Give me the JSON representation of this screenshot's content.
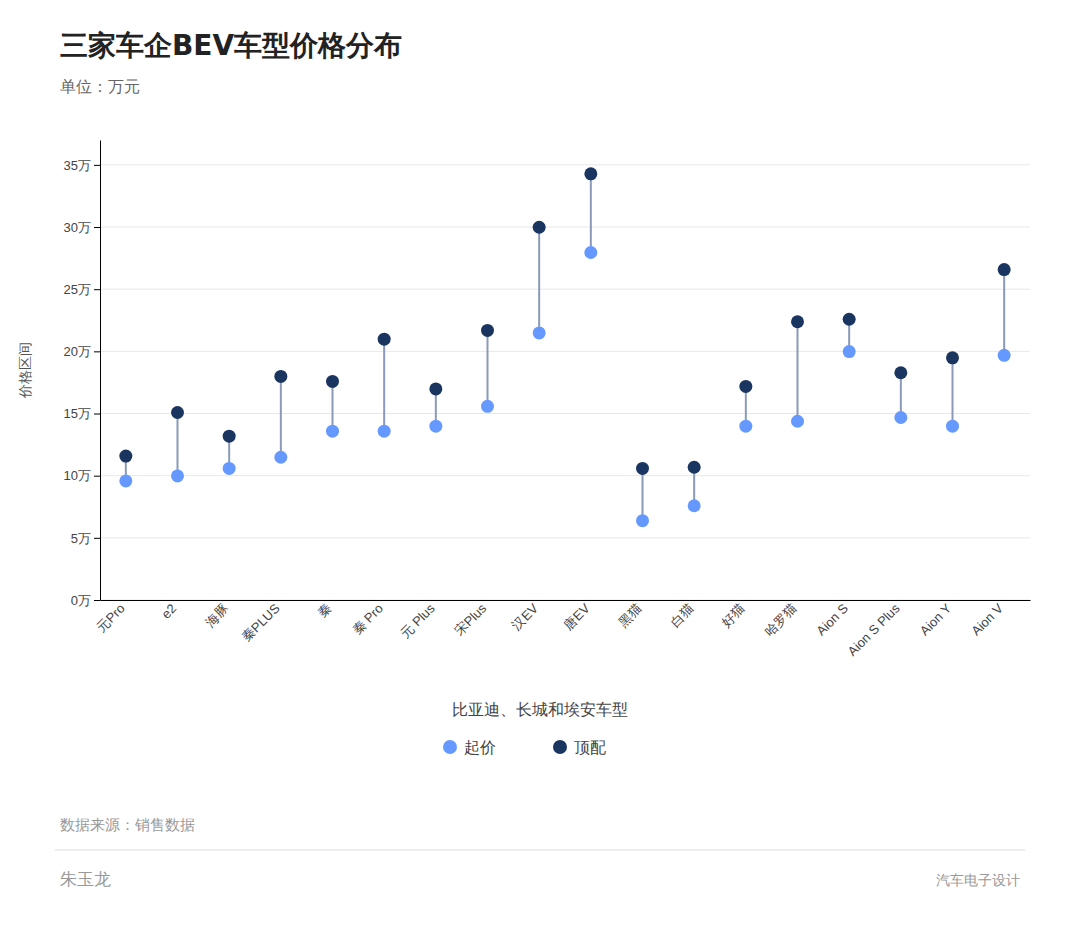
{
  "chart_data": {
    "type": "dumbbell",
    "title": "三家车企BEV车型价格分布",
    "subtitle": "单位：万元",
    "y_label": "价格区间",
    "legend_title": "比亚迪、长城和埃安车型",
    "source": "数据来源：销售数据",
    "author": "朱玉龙",
    "logo_text": "汽车电子设计",
    "categories": [
      "元Pro",
      "e2",
      "海豚",
      "秦PLUS",
      "秦",
      "秦 Pro",
      "元 Plus",
      "宋Plus",
      "汉EV",
      "唐EV",
      "黑猫",
      "白猫",
      "好猫",
      "哈罗猫",
      "Aion S",
      "Aion S Plus",
      "Aion Y",
      "Aion V"
    ],
    "series": [
      {
        "name": "起价",
        "color": "#6699ff",
        "values": [
          9.58,
          9.98,
          10.58,
          11.48,
          13.58,
          13.58,
          13.98,
          15.58,
          21.48,
          27.95,
          6.38,
          7.58,
          13.98,
          14.38,
          19.98,
          14.68,
          13.98,
          19.68
        ]
      },
      {
        "name": "顶配",
        "color": "#1a3560",
        "values": [
          11.58,
          15.08,
          13.18,
          17.98,
          17.58,
          20.98,
          16.98,
          21.68,
          29.98,
          34.28,
          10.58,
          10.68,
          17.18,
          22.38,
          22.58,
          18.28,
          19.48,
          26.58
        ]
      }
    ],
    "ylim": [
      0,
      37
    ],
    "yticks": [
      {
        "value": 0,
        "label": "0万"
      },
      {
        "value": 5,
        "label": "5万"
      },
      {
        "value": 10,
        "label": "10万"
      },
      {
        "value": 15,
        "label": "15万"
      },
      {
        "value": 20,
        "label": "20万"
      },
      {
        "value": 25,
        "label": "25万"
      },
      {
        "value": 30,
        "label": "30万"
      },
      {
        "value": 35,
        "label": "35万"
      }
    ],
    "grid": true,
    "legend": "bottom"
  }
}
